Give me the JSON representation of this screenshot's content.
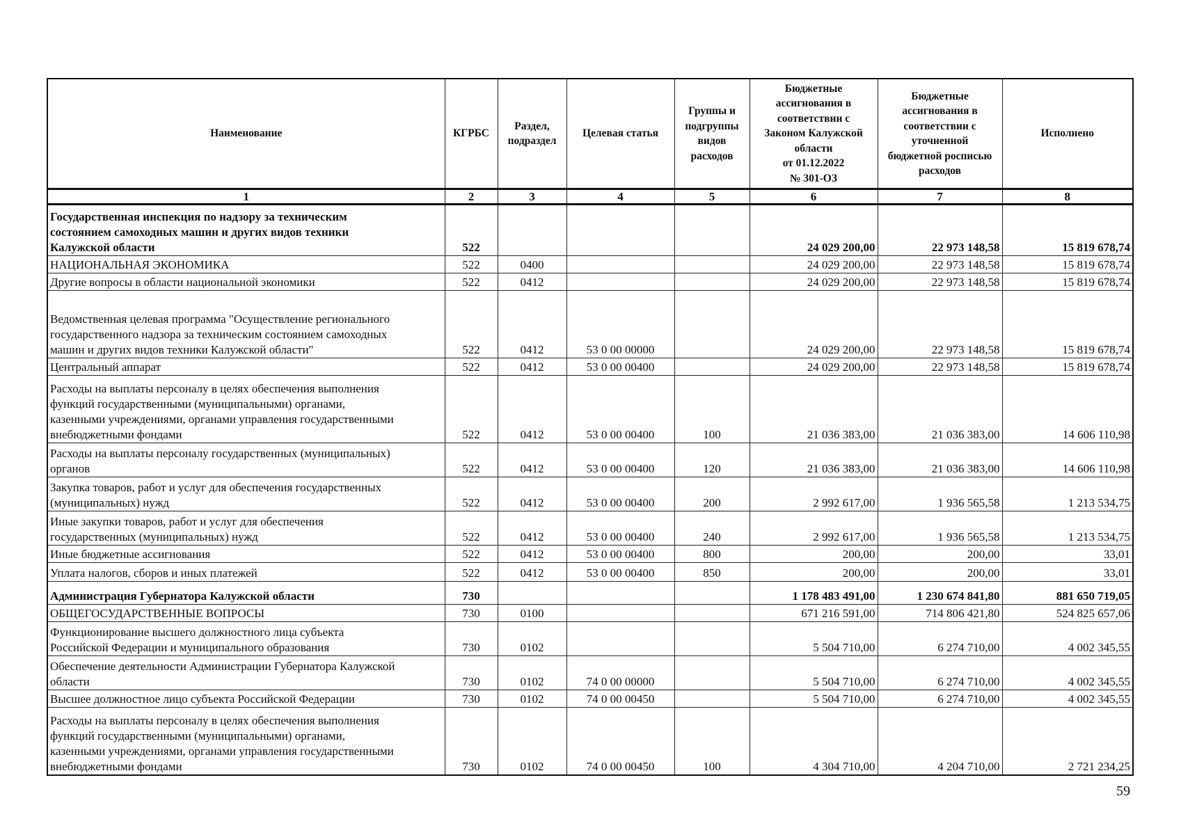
{
  "table": {
    "headers": [
      "Наименование",
      "КГРБС",
      "Раздел,\nподраздел",
      "Целевая статья",
      "Группы и\nподгруппы\nвидов\nрасходов",
      "Бюджетные\nассигнования в\nсоответствии с\nЗаконом Калужской\nобласти\nот 01.12.2022\n№ 301-ОЗ",
      "Бюджетные\nассигнования в\nсоответствии с\nуточненной\nбюджетной росписью\nрасходов",
      "Исполнено"
    ],
    "column_numbers": [
      "1",
      "2",
      "3",
      "4",
      "5",
      "6",
      "7",
      "8"
    ],
    "rows": [
      {
        "bold": true,
        "name": "Государственная инспекция по надзору за техническим\nсостоянием самоходных машин и других видов техники\nКалужской области",
        "kgrbs": "522",
        "razdel": "",
        "cs": "",
        "vr": "",
        "law": "24 029 200,00",
        "plan": "22 973 148,58",
        "done": "15 819 678,74"
      },
      {
        "name": "НАЦИОНАЛЬНАЯ ЭКОНОМИКА",
        "kgrbs": "522",
        "razdel": "0400",
        "cs": "",
        "vr": "",
        "law": "24 029 200,00",
        "plan": "22 973 148,58",
        "done": "15 819 678,74"
      },
      {
        "name": "Другие вопросы в области национальной экономики",
        "kgrbs": "522",
        "razdel": "0412",
        "cs": "",
        "vr": "",
        "law": "24 029 200,00",
        "plan": "22 973 148,58",
        "done": "15 819 678,74"
      },
      {
        "name": "Ведомственная целевая программа \"Осуществление регионального\nгосударственного надзора за техническим состоянием самоходных\nмашин и других видов техники Калужской области\"",
        "kgrbs": "522",
        "razdel": "0412",
        "cs": "53 0 00 00000",
        "vr": "",
        "law": "24 029 200,00",
        "plan": "22 973 148,58",
        "done": "15 819 678,74"
      },
      {
        "name": "Центральный аппарат",
        "kgrbs": "522",
        "razdel": "0412",
        "cs": "53 0 00 00400",
        "vr": "",
        "law": "24 029 200,00",
        "plan": "22 973 148,58",
        "done": "15 819 678,74"
      },
      {
        "name": "Расходы на выплаты персоналу в целях обеспечения выполнения\nфункций государственными (муниципальными) органами,\nказенными учреждениями, органами управления государственными\nвнебюджетными фондами",
        "kgrbs": "522",
        "razdel": "0412",
        "cs": "53 0 00 00400",
        "vr": "100",
        "law": "21 036 383,00",
        "plan": "21 036 383,00",
        "done": "14 606 110,98"
      },
      {
        "name": "Расходы на выплаты персоналу государственных (муниципальных)\nорганов",
        "kgrbs": "522",
        "razdel": "0412",
        "cs": "53 0 00 00400",
        "vr": "120",
        "law": "21 036 383,00",
        "plan": "21 036 383,00",
        "done": "14 606 110,98"
      },
      {
        "name": "Закупка товаров, работ и услуг для обеспечения государственных\n(муниципальных) нужд",
        "kgrbs": "522",
        "razdel": "0412",
        "cs": "53 0 00 00400",
        "vr": "200",
        "law": "2 992 617,00",
        "plan": "1 936 565,58",
        "done": "1 213 534,75"
      },
      {
        "name": "Иные закупки товаров, работ и услуг для обеспечения\nгосударственных (муниципальных) нужд",
        "kgrbs": "522",
        "razdel": "0412",
        "cs": "53 0 00 00400",
        "vr": "240",
        "law": "2 992 617,00",
        "plan": "1 936 565,58",
        "done": "1 213 534,75"
      },
      {
        "name": "Иные бюджетные ассигнования",
        "kgrbs": "522",
        "razdel": "0412",
        "cs": "53 0 00 00400",
        "vr": "800",
        "law": "200,00",
        "plan": "200,00",
        "done": "33,01"
      },
      {
        "name": "Уплата налогов, сборов и иных платежей",
        "kgrbs": "522",
        "razdel": "0412",
        "cs": "53 0 00 00400",
        "vr": "850",
        "law": "200,00",
        "plan": "200,00",
        "done": "33,01"
      },
      {
        "bold": true,
        "name": "Администрация Губернатора Калужской области",
        "kgrbs": "730",
        "razdel": "",
        "cs": "",
        "vr": "",
        "law": "1 178 483 491,00",
        "plan": "1 230 674 841,80",
        "done": "881 650 719,05"
      },
      {
        "name": "ОБЩЕГОСУДАРСТВЕННЫЕ ВОПРОСЫ",
        "kgrbs": "730",
        "razdel": "0100",
        "cs": "",
        "vr": "",
        "law": "671 216 591,00",
        "plan": "714 806 421,80",
        "done": "524 825 657,06"
      },
      {
        "name": "Функционирование высшего должностного лица субъекта\nРоссийской Федерации и муниципального образования",
        "kgrbs": "730",
        "razdel": "0102",
        "cs": "",
        "vr": "",
        "law": "5 504 710,00",
        "plan": "6 274 710,00",
        "done": "4 002 345,55"
      },
      {
        "name": "Обеспечение деятельности Администрации Губернатора Калужской\nобласти",
        "kgrbs": "730",
        "razdel": "0102",
        "cs": "74 0 00 00000",
        "vr": "",
        "law": "5 504 710,00",
        "plan": "6 274 710,00",
        "done": "4 002 345,55"
      },
      {
        "name": "Высшее должностное лицо субъекта Российской Федерации",
        "kgrbs": "730",
        "razdel": "0102",
        "cs": "74 0 00 00450",
        "vr": "",
        "law": "5 504 710,00",
        "plan": "6 274 710,00",
        "done": "4 002 345,55"
      },
      {
        "name": "Расходы на выплаты персоналу в целях обеспечения выполнения\nфункций государственными (муниципальными) органами,\nказенными учреждениями, органами управления государственными\nвнебюджетными фондами",
        "kgrbs": "730",
        "razdel": "0102",
        "cs": "74 0 00 00450",
        "vr": "100",
        "law": "4 304 710,00",
        "plan": "4 204 710,00",
        "done": "2 721 234,25"
      }
    ]
  },
  "page_number": "59"
}
